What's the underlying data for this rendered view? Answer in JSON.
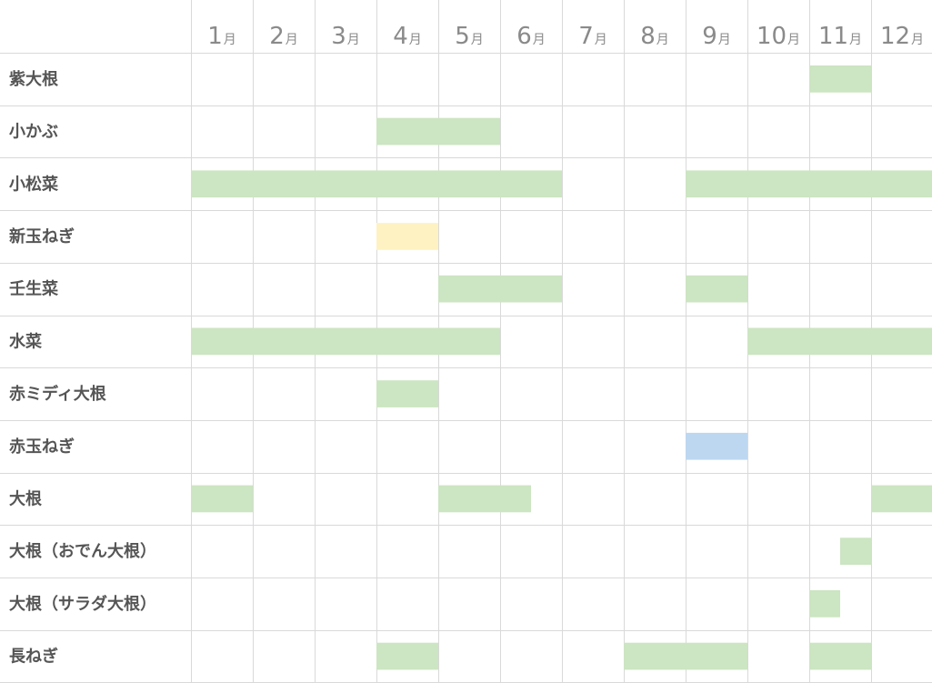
{
  "chart_data": {
    "type": "gantt",
    "title": "",
    "month_suffix": "月",
    "months": [
      "1",
      "2",
      "3",
      "4",
      "5",
      "6",
      "7",
      "8",
      "9",
      "10",
      "11",
      "12"
    ],
    "colors": {
      "green": "#cce5c2",
      "yellow": "#fff2c2",
      "blue": "#bdd7f0",
      "grid": "#d9d9d9"
    },
    "rows": [
      {
        "name": "紫大根",
        "bars": [
          {
            "start": 11.0,
            "end": 12.0,
            "color": "green"
          }
        ]
      },
      {
        "name": "小かぶ",
        "bars": [
          {
            "start": 4.0,
            "end": 6.0,
            "color": "green"
          }
        ]
      },
      {
        "name": "小松菜",
        "bars": [
          {
            "start": 1.0,
            "end": 7.0,
            "color": "green"
          },
          {
            "start": 9.0,
            "end": 13.0,
            "color": "green"
          }
        ]
      },
      {
        "name": "新玉ねぎ",
        "bars": [
          {
            "start": 4.0,
            "end": 5.0,
            "color": "yellow"
          }
        ]
      },
      {
        "name": "壬生菜",
        "bars": [
          {
            "start": 5.0,
            "end": 7.0,
            "color": "green"
          },
          {
            "start": 9.0,
            "end": 10.0,
            "color": "green"
          }
        ]
      },
      {
        "name": "水菜",
        "bars": [
          {
            "start": 1.0,
            "end": 6.0,
            "color": "green"
          },
          {
            "start": 10.0,
            "end": 13.0,
            "color": "green"
          }
        ]
      },
      {
        "name": "赤ミディ大根",
        "bars": [
          {
            "start": 4.0,
            "end": 5.0,
            "color": "green"
          }
        ]
      },
      {
        "name": "赤玉ねぎ",
        "bars": [
          {
            "start": 9.0,
            "end": 10.0,
            "color": "blue"
          }
        ]
      },
      {
        "name": "大根",
        "bars": [
          {
            "start": 1.0,
            "end": 2.0,
            "color": "green"
          },
          {
            "start": 5.0,
            "end": 6.5,
            "color": "green"
          },
          {
            "start": 12.0,
            "end": 13.0,
            "color": "green"
          }
        ]
      },
      {
        "name": "大根（おでん大根）",
        "bars": [
          {
            "start": 11.5,
            "end": 12.0,
            "color": "green"
          }
        ]
      },
      {
        "name": "大根（サラダ大根）",
        "bars": [
          {
            "start": 11.0,
            "end": 11.5,
            "color": "green"
          }
        ]
      },
      {
        "name": "長ねぎ",
        "bars": [
          {
            "start": 4.0,
            "end": 5.0,
            "color": "green"
          },
          {
            "start": 8.0,
            "end": 10.0,
            "color": "green"
          },
          {
            "start": 11.0,
            "end": 12.0,
            "color": "green"
          }
        ]
      }
    ]
  }
}
